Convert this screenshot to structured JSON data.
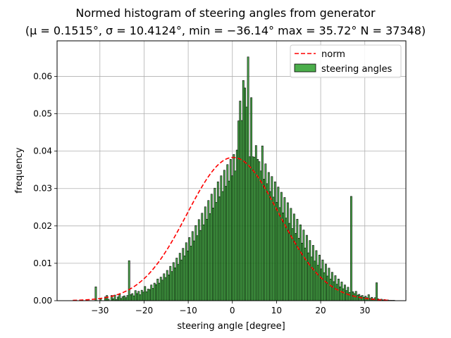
{
  "chart_data": {
    "type": "bar",
    "title": "Normed histogram of steering angles from generator",
    "subtitle": "(μ = 0.1515°,  σ = 10.4124°,  min = −36.14° max = 35.72° N = 37348)",
    "xlabel": "steering angle [degree]",
    "ylabel": "frequency",
    "xlim": [
      -39.7,
      39.3
    ],
    "ylim": [
      0.0,
      0.0695
    ],
    "xticks": [
      -30,
      -20,
      -10,
      0,
      10,
      20,
      30
    ],
    "xtick_labels": [
      "−30",
      "−20",
      "−10",
      "0",
      "10",
      "20",
      "30"
    ],
    "yticks": [
      0.0,
      0.01,
      0.02,
      0.03,
      0.04,
      0.05,
      0.06
    ],
    "ytick_labels": [
      "0.00",
      "0.01",
      "0.02",
      "0.03",
      "0.04",
      "0.05",
      "0.06"
    ],
    "grid": true,
    "legend_position": "top-right",
    "legend": [
      "norm",
      "steering angles"
    ],
    "series": [
      {
        "name": "steering angles",
        "kind": "histogram",
        "color": "#2ca02c",
        "edge_color": "#000000",
        "bin_start": -36.14,
        "bin_width": 0.3593,
        "values": [
          0.0,
          0.0,
          0.0,
          0.0,
          0.0,
          0.0,
          0.0,
          0.0,
          0.0,
          0.0,
          0.0,
          0.0,
          0.0,
          0.0,
          0.0037,
          0.0,
          0.0,
          0.0005,
          0.0,
          0.0,
          0.001,
          0.0014,
          0.0004,
          0.0,
          0.0014,
          0.0005,
          0.0015,
          0.0003,
          0.001,
          0.0017,
          0.0006,
          0.0011,
          0.0013,
          0.0008,
          0.0014,
          0.0107,
          0.0016,
          0.0019,
          0.0013,
          0.0027,
          0.0019,
          0.0025,
          0.0016,
          0.0028,
          0.0023,
          0.0038,
          0.0024,
          0.0031,
          0.003,
          0.0042,
          0.0033,
          0.0047,
          0.0043,
          0.0058,
          0.0047,
          0.0063,
          0.0055,
          0.0072,
          0.0062,
          0.0081,
          0.0069,
          0.0092,
          0.0078,
          0.0102,
          0.0088,
          0.0114,
          0.0097,
          0.0127,
          0.0109,
          0.014,
          0.012,
          0.0155,
          0.0133,
          0.0169,
          0.0146,
          0.0185,
          0.016,
          0.0201,
          0.0174,
          0.0217,
          0.0188,
          0.0234,
          0.0203,
          0.0251,
          0.0218,
          0.0268,
          0.0233,
          0.0285,
          0.0248,
          0.0301,
          0.0263,
          0.0318,
          0.0278,
          0.0334,
          0.0292,
          0.0349,
          0.0306,
          0.0364,
          0.032,
          0.0378,
          0.0334,
          0.0391,
          0.0347,
          0.0403,
          0.0481,
          0.0534,
          0.0482,
          0.0589,
          0.0569,
          0.0518,
          0.0652,
          0.0385,
          0.0543,
          0.0385,
          0.0384,
          0.0415,
          0.0378,
          0.0372,
          0.0347,
          0.0414,
          0.0325,
          0.0366,
          0.0313,
          0.0343,
          0.0292,
          0.0332,
          0.0277,
          0.0318,
          0.0263,
          0.0304,
          0.0249,
          0.029,
          0.0235,
          0.0276,
          0.0221,
          0.0262,
          0.0207,
          0.0247,
          0.0193,
          0.0232,
          0.018,
          0.0218,
          0.0167,
          0.0203,
          0.0154,
          0.0189,
          0.0141,
          0.0175,
          0.0128,
          0.0161,
          0.0117,
          0.0148,
          0.0106,
          0.0134,
          0.0095,
          0.0122,
          0.0085,
          0.0109,
          0.0075,
          0.0098,
          0.0066,
          0.0087,
          0.0058,
          0.0076,
          0.0051,
          0.0067,
          0.0044,
          0.0058,
          0.0037,
          0.005,
          0.0032,
          0.0042,
          0.0027,
          0.0036,
          0.0022,
          0.0279,
          0.0024,
          0.0019,
          0.0025,
          0.0015,
          0.0017,
          0.0012,
          0.0014,
          0.0009,
          0.0012,
          0.0008,
          0.0016,
          0.0006,
          0.0009,
          0.0005,
          0.0008,
          0.0048,
          0.0005,
          0.0003,
          0.0004,
          0.0002,
          0.0003,
          0.0002,
          0.0002,
          0.0001,
          0.0001,
          0.0001,
          0.0001,
          0.0,
          0.0,
          0.0,
          0.0,
          0.0,
          0.0,
          0.0,
          0.0,
          0.0
        ]
      },
      {
        "name": "norm",
        "kind": "normal_pdf",
        "color": "#ff0000",
        "linestyle": "dashed",
        "mu": 0.1515,
        "sigma": 10.4124,
        "x_range": [
          -36.14,
          35.72
        ]
      }
    ]
  }
}
